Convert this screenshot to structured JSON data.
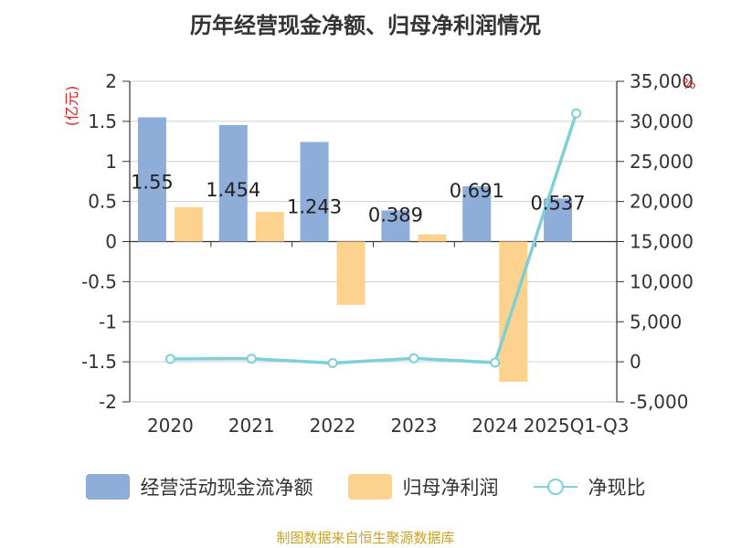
{
  "chart_data": {
    "type": "bar+line",
    "title": "历年经营现金净额、归母净利润情况",
    "categories": [
      "2020",
      "2021",
      "2022",
      "2023",
      "2024",
      "2025Q1-Q3"
    ],
    "y_left": {
      "label": "(亿元)",
      "ylim": [
        -2,
        2
      ],
      "ticks": [
        "2",
        "1.5",
        "1",
        "0.5",
        "0",
        "-0.5",
        "-1",
        "-1.5",
        "-2"
      ]
    },
    "y_right": {
      "label": "%",
      "ylim": [
        -5000,
        35000
      ],
      "ticks": [
        "35,000",
        "30,000",
        "25,000",
        "20,000",
        "15,000",
        "10,000",
        "5,000",
        "0",
        "-5,000"
      ]
    },
    "series": [
      {
        "name": "经营活动现金流净额",
        "kind": "bar",
        "axis": "left",
        "color": "#8eadd9",
        "values": [
          1.55,
          1.454,
          1.243,
          0.389,
          0.691,
          0.537
        ],
        "labels": [
          "1.55",
          "1.454",
          "1.243",
          "0.389",
          "0.691",
          "0.537"
        ]
      },
      {
        "name": "归母净利润",
        "kind": "bar",
        "axis": "left",
        "color": "#fdd28e",
        "values": [
          0.43,
          0.37,
          -0.79,
          0.09,
          -1.75,
          0.0
        ]
      },
      {
        "name": "净现比",
        "kind": "line",
        "axis": "right",
        "color": "#7fcfd6",
        "values": [
          360,
          390,
          -160,
          430,
          -100,
          31000
        ]
      }
    ],
    "grid": true,
    "legend_position": "bottom"
  },
  "source": "制图数据来自恒生聚源数据库"
}
